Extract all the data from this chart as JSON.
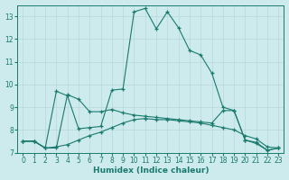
{
  "xlabel": "Humidex (Indice chaleur)",
  "background_color": "#cdeaed",
  "grid_color": "#b8d8db",
  "line_color": "#1a7a6e",
  "xlim": [
    -0.5,
    23.5
  ],
  "ylim": [
    7.0,
    13.5
  ],
  "yticks": [
    7,
    8,
    9,
    10,
    11,
    12,
    13
  ],
  "xticks": [
    0,
    1,
    2,
    3,
    4,
    5,
    6,
    7,
    8,
    9,
    10,
    11,
    12,
    13,
    14,
    15,
    16,
    17,
    18,
    19,
    20,
    21,
    22,
    23
  ],
  "series": [
    {
      "x": [
        0,
        1,
        2,
        3,
        4,
        5,
        6,
        7,
        8,
        9,
        10,
        11,
        12,
        13,
        14,
        15,
        16,
        17,
        18,
        19,
        20,
        21,
        22,
        23
      ],
      "y": [
        7.5,
        7.5,
        7.2,
        9.7,
        9.5,
        8.05,
        8.1,
        8.15,
        9.75,
        9.8,
        13.2,
        13.35,
        12.45,
        13.2,
        12.5,
        11.5,
        11.3,
        10.5,
        9.0,
        8.85,
        7.55,
        7.4,
        7.1,
        7.2
      ]
    },
    {
      "x": [
        0,
        1,
        2,
        3,
        4,
        5,
        6,
        7,
        8,
        9,
        10,
        11,
        12,
        13,
        14,
        15,
        16,
        17,
        18,
        19,
        20,
        21,
        22,
        23
      ],
      "y": [
        7.5,
        7.5,
        7.2,
        7.25,
        7.35,
        7.55,
        7.75,
        7.9,
        8.1,
        8.3,
        8.45,
        8.5,
        8.45,
        8.45,
        8.4,
        8.35,
        8.3,
        8.2,
        8.1,
        8.0,
        7.75,
        7.6,
        7.25,
        7.2
      ]
    },
    {
      "x": [
        0,
        1,
        2,
        3,
        4,
        5,
        6,
        7,
        8,
        9,
        10,
        11,
        12,
        13,
        14,
        15,
        16,
        17,
        18,
        19,
        20,
        21,
        22,
        23
      ],
      "y": [
        7.5,
        7.5,
        7.2,
        7.2,
        9.55,
        9.35,
        8.8,
        8.8,
        8.9,
        8.75,
        8.65,
        8.6,
        8.55,
        8.5,
        8.45,
        8.4,
        8.35,
        8.3,
        8.85,
        8.85,
        7.55,
        7.45,
        7.1,
        7.2
      ]
    }
  ]
}
